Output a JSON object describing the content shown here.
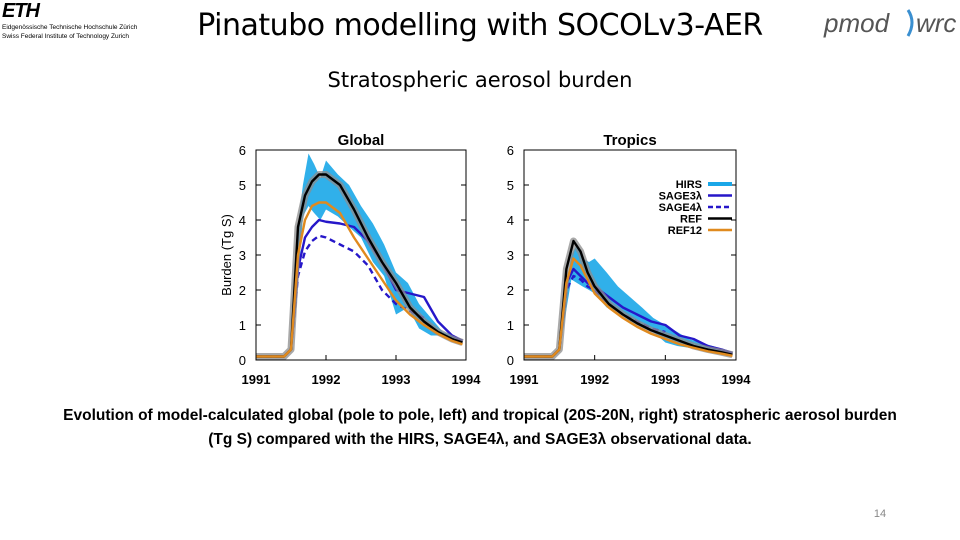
{
  "header": {
    "eth_mark": "ETH",
    "eth_line1": "Eidgenössische Technische Hochschule Zürich",
    "eth_line2": "Swiss Federal Institute of Technology Zurich",
    "title": "Pinatubo modelling with SOCOLv3-AER",
    "pmod_left": "pmod",
    "pmod_right": "wrc"
  },
  "subtitle": "Stratospheric aerosol burden",
  "caption": {
    "line1": "Evolution of model-calculated global (pole to pole, left) and tropical (20S-20N, right) stratospheric aerosol burden",
    "line2": "(Tg S) compared with the HIRS, SAGE4λ, and SAGE3λ observational data."
  },
  "page_number": "14",
  "colors": {
    "HIRS": "#1aa7e8",
    "SAGE3λ": "#2617c9",
    "SAGE4λ": "#2617c9",
    "REF": "#000000",
    "REF12": "#e08a1e",
    "REF_band": "#8c8c8c"
  },
  "chart_data": [
    {
      "type": "line",
      "title": "Global",
      "ylabel": "Burden (Tg S)",
      "xlim": [
        1991.0,
        1994.0
      ],
      "ylim": [
        0,
        6
      ],
      "xticks": [
        "1991",
        "1992",
        "1993",
        "1994"
      ],
      "yticks": [
        "0",
        "1",
        "2",
        "3",
        "4",
        "5",
        "6"
      ],
      "grid": false,
      "legend": null,
      "series": [
        {
          "name": "HIRS",
          "style": "band",
          "x": [
            1991.5,
            1991.58,
            1991.67,
            1991.75,
            1991.83,
            1991.92,
            1992.0,
            1992.17,
            1992.33,
            1992.5,
            1992.67,
            1992.83,
            1993.0,
            1993.17,
            1993.33,
            1993.5,
            1993.67,
            1993.83
          ],
          "low": [
            0.2,
            1.6,
            4.1,
            4.4,
            4.2,
            4.0,
            4.3,
            4.1,
            3.8,
            3.5,
            2.8,
            2.4,
            1.3,
            1.5,
            0.9,
            0.7,
            0.7,
            0.5
          ],
          "high": [
            1.0,
            3.5,
            5.0,
            5.9,
            5.6,
            5.2,
            5.7,
            5.3,
            5.0,
            4.4,
            3.9,
            3.3,
            2.5,
            2.2,
            1.6,
            1.2,
            0.8,
            0.7
          ]
        },
        {
          "name": "SAGE3λ",
          "style": "solid",
          "x": [
            1991.0,
            1991.4,
            1991.5,
            1991.6,
            1991.7,
            1991.8,
            1991.9,
            1992.0,
            1992.2,
            1992.4,
            1992.6,
            1992.8,
            1993.0,
            1993.2,
            1993.4,
            1993.6,
            1993.8,
            1993.95
          ],
          "y": [
            0.1,
            0.1,
            0.3,
            2.6,
            3.5,
            3.8,
            4.0,
            3.95,
            3.9,
            3.8,
            3.4,
            2.8,
            2.0,
            1.9,
            1.8,
            1.1,
            0.7,
            0.55
          ]
        },
        {
          "name": "SAGE4λ",
          "style": "dashed",
          "x": [
            1991.0,
            1991.4,
            1991.5,
            1991.6,
            1991.7,
            1991.8,
            1991.9,
            1992.0,
            1992.2,
            1992.4,
            1992.6,
            1992.8,
            1993.0,
            1993.2,
            1993.4
          ],
          "y": [
            0.1,
            0.1,
            0.3,
            2.4,
            3.1,
            3.4,
            3.55,
            3.5,
            3.3,
            3.1,
            2.7,
            2.0,
            1.6,
            1.4,
            1.2
          ]
        },
        {
          "name": "REF",
          "style": "solid-band",
          "x": [
            1991.0,
            1991.4,
            1991.5,
            1991.6,
            1991.7,
            1991.8,
            1991.9,
            1992.0,
            1992.2,
            1992.4,
            1992.6,
            1992.8,
            1993.0,
            1993.2,
            1993.4,
            1993.6,
            1993.8,
            1993.95
          ],
          "y": [
            0.1,
            0.1,
            0.3,
            3.8,
            4.7,
            5.1,
            5.3,
            5.3,
            5.0,
            4.3,
            3.5,
            2.8,
            2.2,
            1.5,
            1.1,
            0.8,
            0.6,
            0.5
          ]
        },
        {
          "name": "REF12",
          "style": "solid",
          "x": [
            1991.0,
            1991.4,
            1991.5,
            1991.6,
            1991.7,
            1991.8,
            1991.9,
            1992.0,
            1992.2,
            1992.4,
            1992.6,
            1992.8,
            1993.0,
            1993.2,
            1993.4,
            1993.6,
            1993.8,
            1993.95
          ],
          "y": [
            0.1,
            0.1,
            0.3,
            3.0,
            4.0,
            4.4,
            4.5,
            4.5,
            4.2,
            3.5,
            2.9,
            2.3,
            1.7,
            1.3,
            1.0,
            0.75,
            0.55,
            0.45
          ]
        }
      ]
    },
    {
      "type": "line",
      "title": "Tropics",
      "ylabel": "",
      "xlim": [
        1991.0,
        1994.0
      ],
      "ylim": [
        0,
        6
      ],
      "xticks": [
        "1991",
        "1992",
        "1993",
        "1994"
      ],
      "yticks": [
        "0",
        "1",
        "2",
        "3",
        "4",
        "5",
        "6"
      ],
      "grid": false,
      "legend": "top-right",
      "series": [
        {
          "name": "HIRS",
          "style": "band",
          "x": [
            1991.5,
            1991.58,
            1991.67,
            1991.75,
            1991.83,
            1991.92,
            1992.0,
            1992.17,
            1992.33,
            1992.5,
            1992.67,
            1992.83,
            1993.0,
            1993.17,
            1993.33,
            1993.5,
            1993.67,
            1993.83
          ],
          "low": [
            0.2,
            1.2,
            2.3,
            2.2,
            2.1,
            2.0,
            1.9,
            1.5,
            1.4,
            1.1,
            1.0,
            0.8,
            0.5,
            0.4,
            0.35,
            0.3,
            0.2,
            0.2
          ],
          "high": [
            0.6,
            1.8,
            3.0,
            3.3,
            2.9,
            2.8,
            2.9,
            2.5,
            2.1,
            1.8,
            1.5,
            1.2,
            1.0,
            0.8,
            0.6,
            0.5,
            0.4,
            0.3
          ]
        },
        {
          "name": "SAGE3λ",
          "style": "solid",
          "x": [
            1991.0,
            1991.4,
            1991.5,
            1991.6,
            1991.7,
            1991.8,
            1991.9,
            1992.0,
            1992.2,
            1992.4,
            1992.6,
            1992.8,
            1993.0,
            1993.2,
            1993.4,
            1993.6,
            1993.8,
            1993.95
          ],
          "y": [
            0.1,
            0.1,
            0.3,
            2.2,
            2.6,
            2.4,
            2.2,
            2.1,
            1.8,
            1.5,
            1.3,
            1.1,
            1.0,
            0.7,
            0.6,
            0.4,
            0.3,
            0.2
          ]
        },
        {
          "name": "SAGE4λ",
          "style": "dashed",
          "x": [
            1991.0,
            1991.4,
            1991.5,
            1991.6,
            1991.7,
            1991.8,
            1991.9,
            1992.0,
            1992.2,
            1992.4,
            1992.6,
            1992.8,
            1993.0
          ],
          "y": [
            0.1,
            0.1,
            0.3,
            2.0,
            2.4,
            2.3,
            2.1,
            2.0,
            1.6,
            1.3,
            1.1,
            0.9,
            0.8
          ]
        },
        {
          "name": "REF",
          "style": "solid-band",
          "x": [
            1991.0,
            1991.4,
            1991.5,
            1991.6,
            1991.7,
            1991.8,
            1991.9,
            1992.0,
            1992.2,
            1992.4,
            1992.6,
            1992.8,
            1993.0,
            1993.2,
            1993.4,
            1993.6,
            1993.8,
            1993.95
          ],
          "y": [
            0.1,
            0.1,
            0.3,
            2.6,
            3.4,
            3.1,
            2.5,
            2.1,
            1.6,
            1.3,
            1.05,
            0.85,
            0.7,
            0.55,
            0.4,
            0.3,
            0.22,
            0.15
          ]
        },
        {
          "name": "REF12",
          "style": "solid",
          "x": [
            1991.0,
            1991.4,
            1991.5,
            1991.6,
            1991.7,
            1991.8,
            1991.9,
            1992.0,
            1992.2,
            1992.4,
            1992.6,
            1992.8,
            1993.0,
            1993.2,
            1993.4,
            1993.6,
            1993.8,
            1993.95
          ],
          "y": [
            0.1,
            0.1,
            0.3,
            2.2,
            2.9,
            2.7,
            2.3,
            1.9,
            1.5,
            1.2,
            0.95,
            0.75,
            0.6,
            0.45,
            0.35,
            0.25,
            0.18,
            0.12
          ]
        }
      ]
    }
  ]
}
